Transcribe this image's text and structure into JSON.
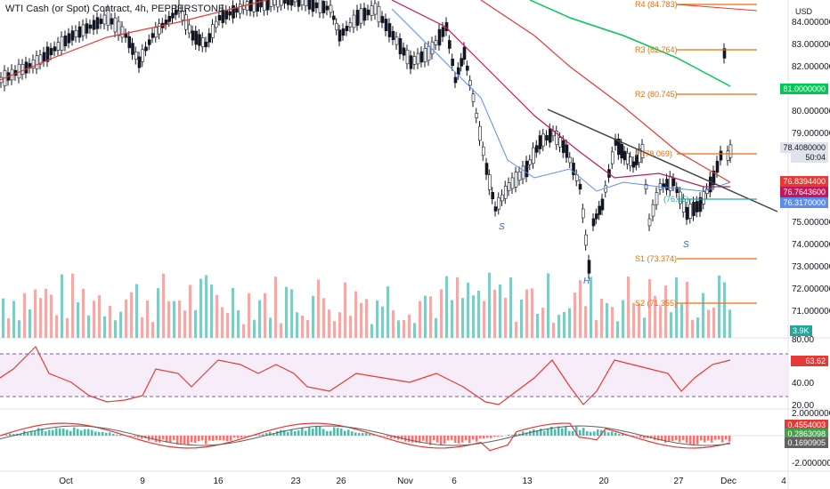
{
  "header": {
    "title": "WTI Cash (or Spot) Contract, 4h, PEPPERSTONE",
    "currency": "USD"
  },
  "price_axis": {
    "ticks": [
      "84.0000000",
      "83.0000000",
      "82.0000000",
      "80.0000000",
      "79.0000000",
      "78.4080000",
      "76.8394400",
      "76.7643600",
      "76.3170000",
      "75.0000000",
      "74.0000000",
      "73.0000000",
      "72.0000000",
      "71.0000000",
      "70.0000000"
    ],
    "tags": {
      "green_ma": "81.0000000",
      "last_price": "78.4080000",
      "countdown": "50:04",
      "red_ma": "76.8394400",
      "purple_ma": "76.7643600",
      "blue_ma": "76.3170000",
      "volume": "3.9K"
    }
  },
  "pivots": [
    {
      "label": "R4 (84.783)"
    },
    {
      "label": "R3 (82.764)"
    },
    {
      "label": "R2 (80.745)"
    },
    {
      "label": "P (78.069)"
    },
    {
      "label": "S1 (73.374)"
    },
    {
      "label": "S2 (71.355)"
    },
    {
      "label": "(76.15)"
    }
  ],
  "patterns": {
    "left_shoulder": "S",
    "head": "H",
    "right_shoulder": "S"
  },
  "rsi": {
    "ticks": [
      "80.00",
      "40.00",
      "20.00"
    ],
    "value": "63.62"
  },
  "macd": {
    "ticks": [
      "2.0000000",
      "-2.0000000"
    ],
    "values": [
      "0.4554003",
      "0.2863098",
      "0.1690905"
    ]
  },
  "time_axis": [
    "Oct",
    "9",
    "16",
    "23",
    "26",
    "Nov",
    "6",
    "13",
    "20",
    "27",
    "Dec",
    "4"
  ],
  "colors": {
    "up": "#26a69a",
    "down": "#ef5350",
    "red_ma": "#e53935",
    "green_ma": "#00c853",
    "purple_ma": "#c2185b",
    "blue_ma": "#5b8def",
    "pivot": "#ef6c00",
    "rsi_line": "#e53935",
    "rsi_band": "#f3e5f5",
    "trend": "#424242"
  }
}
